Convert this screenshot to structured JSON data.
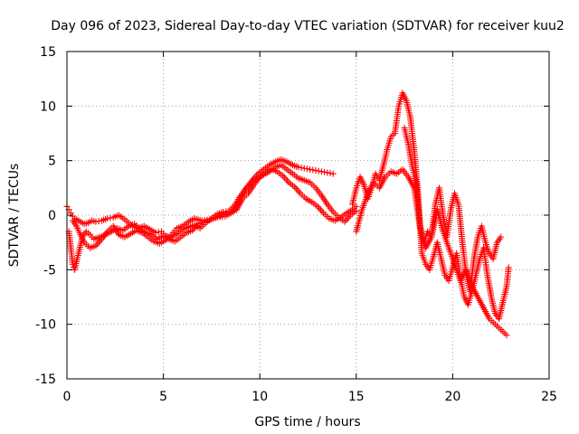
{
  "chart_data": {
    "type": "scatter",
    "title": "Day 096 of 2023, Sidereal Day-to-day VTEC variation (SDTVAR) for receiver kuu2",
    "xlabel": "GPS time / hours",
    "ylabel": "SDTVAR / TECUs",
    "xlim": [
      0,
      25
    ],
    "ylim": [
      -15,
      15
    ],
    "xticks": [
      0,
      5,
      10,
      15,
      20,
      25
    ],
    "yticks": [
      -15,
      -10,
      -5,
      0,
      5,
      10,
      15
    ],
    "grid": true,
    "marker": "+",
    "marker_color": "#ff0000",
    "series": [
      {
        "name": "SDTVAR",
        "traces": [
          {
            "x": [
              0.0,
              0.1,
              0.2,
              0.3,
              0.4,
              0.5,
              0.7,
              0.9,
              1.1,
              1.3,
              1.5,
              1.8,
              2.1,
              2.4,
              2.7,
              3.0,
              3.2,
              3.4,
              3.7,
              4.0,
              4.3,
              4.6,
              4.9,
              5.1,
              5.3,
              5.5,
              5.7,
              6.0,
              6.3,
              6.6,
              7.0,
              7.4,
              7.8,
              8.2,
              8.6,
              9.0,
              9.3,
              9.6,
              9.9,
              10.2,
              10.5,
              10.8,
              11.1,
              11.4,
              11.7,
              12.0,
              12.3,
              12.6,
              12.9,
              13.2,
              13.5,
              13.8
            ],
            "y": [
              0.8,
              0.5,
              0.2,
              -0.1,
              -0.3,
              -0.4,
              -0.6,
              -0.8,
              -0.7,
              -0.5,
              -0.6,
              -0.5,
              -0.3,
              -0.2,
              0.0,
              -0.4,
              -0.7,
              -1.0,
              -1.2,
              -1.0,
              -1.3,
              -1.6,
              -1.5,
              -1.9,
              -2.0,
              -1.6,
              -1.2,
              -1.0,
              -0.6,
              -0.3,
              -0.5,
              -0.4,
              -0.2,
              -0.1,
              0.3,
              1.5,
              2.5,
              3.2,
              3.8,
              4.2,
              4.6,
              4.9,
              5.1,
              4.9,
              4.6,
              4.4,
              4.3,
              4.2,
              4.1,
              4.0,
              3.9,
              3.8
            ]
          },
          {
            "x": [
              0.1,
              0.2,
              0.3,
              0.4,
              0.6,
              0.8,
              1.0,
              1.2,
              1.4,
              1.7,
              2.0,
              2.3,
              2.6,
              2.9,
              3.2,
              3.5,
              3.8,
              4.1,
              4.4,
              4.7,
              5.0,
              5.3,
              5.6,
              5.9,
              6.2,
              6.5,
              6.8,
              7.2,
              7.6,
              8.0,
              8.4,
              8.8,
              9.1,
              9.4,
              9.7,
              10.0,
              10.3,
              10.6,
              10.9,
              11.2,
              11.5,
              11.8,
              12.1,
              12.4,
              12.7,
              13.0,
              13.3,
              13.6,
              13.9,
              14.2,
              14.5,
              14.8,
              15.0
            ],
            "y": [
              -1.5,
              -3.0,
              -4.5,
              -5.0,
              -3.5,
              -2.0,
              -1.5,
              -1.8,
              -2.2,
              -2.0,
              -1.8,
              -1.5,
              -1.2,
              -1.4,
              -1.0,
              -0.8,
              -1.3,
              -1.6,
              -1.8,
              -2.2,
              -1.9,
              -2.2,
              -2.4,
              -2.0,
              -1.6,
              -1.4,
              -0.8,
              -0.6,
              -0.3,
              0.0,
              0.2,
              0.5,
              1.5,
              2.0,
              2.8,
              3.5,
              3.9,
              4.2,
              4.0,
              3.6,
              3.0,
              2.6,
              2.0,
              1.5,
              1.2,
              0.8,
              0.2,
              -0.3,
              -0.5,
              -0.2,
              0.2,
              0.5,
              0.8
            ]
          },
          {
            "x": [
              0.3,
              0.5,
              0.7,
              0.9,
              1.2,
              1.5,
              1.8,
              2.1,
              2.4,
              2.7,
              3.0,
              3.3,
              3.6,
              3.9,
              4.2,
              4.5,
              4.8,
              5.1,
              5.4,
              5.7,
              6.0,
              6.3,
              6.6,
              6.9,
              7.2,
              7.5,
              7.8,
              8.1,
              8.4,
              8.7,
              9.0,
              9.3,
              9.6,
              9.9,
              10.2,
              10.5,
              10.8,
              11.1,
              11.4,
              11.7,
              12.0,
              12.3,
              12.6,
              12.9,
              13.2,
              13.5,
              13.8,
              14.1,
              14.4,
              14.7,
              15.0
            ],
            "y": [
              -0.5,
              -1.0,
              -1.8,
              -2.5,
              -3.0,
              -2.8,
              -2.2,
              -1.5,
              -1.0,
              -1.8,
              -2.0,
              -1.7,
              -1.4,
              -1.6,
              -2.0,
              -2.4,
              -2.6,
              -2.3,
              -2.0,
              -1.7,
              -1.3,
              -1.1,
              -0.9,
              -1.2,
              -0.7,
              -0.3,
              0.1,
              0.3,
              0.4,
              0.9,
              1.8,
              2.5,
              3.0,
              3.4,
              3.7,
              4.0,
              4.4,
              4.6,
              4.2,
              3.8,
              3.4,
              3.2,
              3.0,
              2.5,
              1.8,
              1.0,
              0.3,
              -0.2,
              -0.6,
              0.0,
              0.4
            ]
          },
          {
            "x": [
              14.8,
              15.0,
              15.2,
              15.4,
              15.6,
              15.8,
              16.0,
              16.2,
              16.4,
              16.6,
              16.8,
              17.0,
              17.2,
              17.4,
              17.6,
              17.8,
              18.0,
              18.2,
              18.4,
              18.6,
              18.8,
              19.0,
              19.2,
              19.4,
              19.6,
              19.8,
              20.0,
              20.2,
              20.4,
              20.6,
              20.8,
              21.0,
              21.2,
              21.4,
              21.6,
              21.8,
              22.0,
              22.2,
              22.4,
              22.6,
              22.8,
              22.9
            ],
            "y": [
              1.0,
              2.5,
              3.5,
              2.8,
              1.5,
              2.5,
              3.8,
              3.2,
              4.5,
              6.0,
              7.2,
              7.5,
              10.0,
              11.2,
              10.5,
              9.0,
              6.0,
              2.0,
              -3.5,
              -4.5,
              -5.0,
              -3.8,
              -2.5,
              -4.0,
              -5.5,
              -6.0,
              -4.8,
              -3.5,
              -5.8,
              -7.5,
              -8.2,
              -7.0,
              -5.5,
              -4.0,
              -3.0,
              -5.5,
              -7.5,
              -9.0,
              -9.5,
              -8.0,
              -6.5,
              -4.8
            ]
          },
          {
            "x": [
              15.0,
              15.3,
              15.6,
              15.9,
              16.2,
              16.5,
              16.8,
              17.1,
              17.4,
              17.7,
              18.0,
              18.3,
              18.6,
              18.9,
              19.2,
              19.5,
              19.8,
              20.1,
              20.4,
              20.7,
              21.0,
              21.3,
              21.6,
              21.9,
              22.2,
              22.5,
              22.8
            ],
            "y": [
              -1.5,
              0.5,
              2.0,
              3.0,
              2.5,
              3.5,
              4.0,
              3.8,
              4.2,
              3.5,
              2.5,
              -1.0,
              -3.0,
              -2.0,
              0.5,
              -1.5,
              -3.0,
              -4.5,
              -6.0,
              -5.0,
              -6.5,
              -7.5,
              -8.5,
              -9.5,
              -10.0,
              -10.5,
              -11.0
            ]
          },
          {
            "x": [
              17.5,
              17.7,
              17.9,
              18.1,
              18.3,
              18.5,
              18.7,
              18.9,
              19.1,
              19.3,
              19.5,
              19.7,
              19.9,
              20.1,
              20.3,
              20.5,
              20.7,
              20.9,
              21.1,
              21.3,
              21.5,
              21.7,
              21.9,
              22.1,
              22.3,
              22.5
            ],
            "y": [
              8.0,
              6.5,
              4.5,
              3.0,
              -1.0,
              -2.5,
              -1.5,
              -2.0,
              1.0,
              2.5,
              0.0,
              -2.0,
              0.5,
              2.0,
              1.0,
              -2.5,
              -5.5,
              -7.0,
              -4.0,
              -2.0,
              -1.0,
              -2.5,
              -3.5,
              -4.0,
              -2.5,
              -2.0
            ]
          }
        ]
      }
    ]
  }
}
